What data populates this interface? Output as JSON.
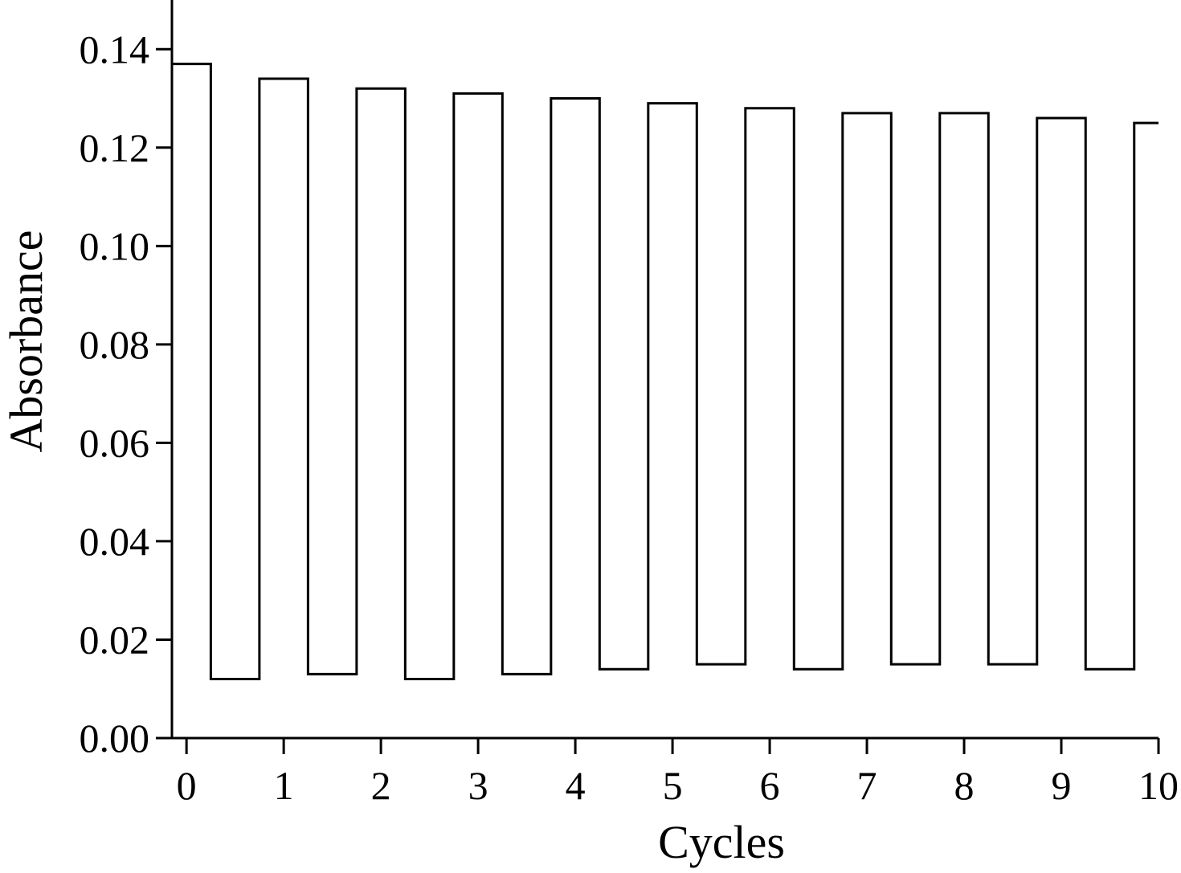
{
  "chart_data": {
    "type": "line",
    "title": "",
    "xlabel": "Cycles",
    "ylabel": "Absorbance",
    "xlim": [
      -0.15,
      10
    ],
    "ylim": [
      0,
      0.15
    ],
    "xticks": [
      0,
      1,
      2,
      3,
      4,
      5,
      6,
      7,
      8,
      9,
      10
    ],
    "xtick_labels": [
      "0",
      "1",
      "2",
      "3",
      "4",
      "5",
      "6",
      "7",
      "8",
      "9",
      "10"
    ],
    "yticks": [
      0,
      0.02,
      0.04,
      0.06,
      0.08,
      0.1,
      0.12,
      0.14
    ],
    "ytick_labels": [
      "0.00",
      "0.02",
      "0.04",
      "0.06",
      "0.08",
      "0.10",
      "0.12",
      "0.14"
    ],
    "grid": false,
    "legend": "none",
    "series": [
      {
        "step_edges": [
          -0.15,
          0.25,
          0.75,
          1.25,
          1.75,
          2.25,
          2.75,
          3.25,
          3.75,
          4.25,
          4.75,
          5.25,
          5.75,
          6.25,
          6.75,
          7.25,
          7.75,
          8.25,
          8.75,
          9.25,
          9.75,
          10.0
        ],
        "values": [
          0.137,
          0.012,
          0.134,
          0.013,
          0.132,
          0.012,
          0.131,
          0.013,
          0.13,
          0.014,
          0.129,
          0.015,
          0.128,
          0.014,
          0.127,
          0.015,
          0.127,
          0.015,
          0.126,
          0.014,
          0.125
        ],
        "color": "#000000"
      }
    ]
  }
}
